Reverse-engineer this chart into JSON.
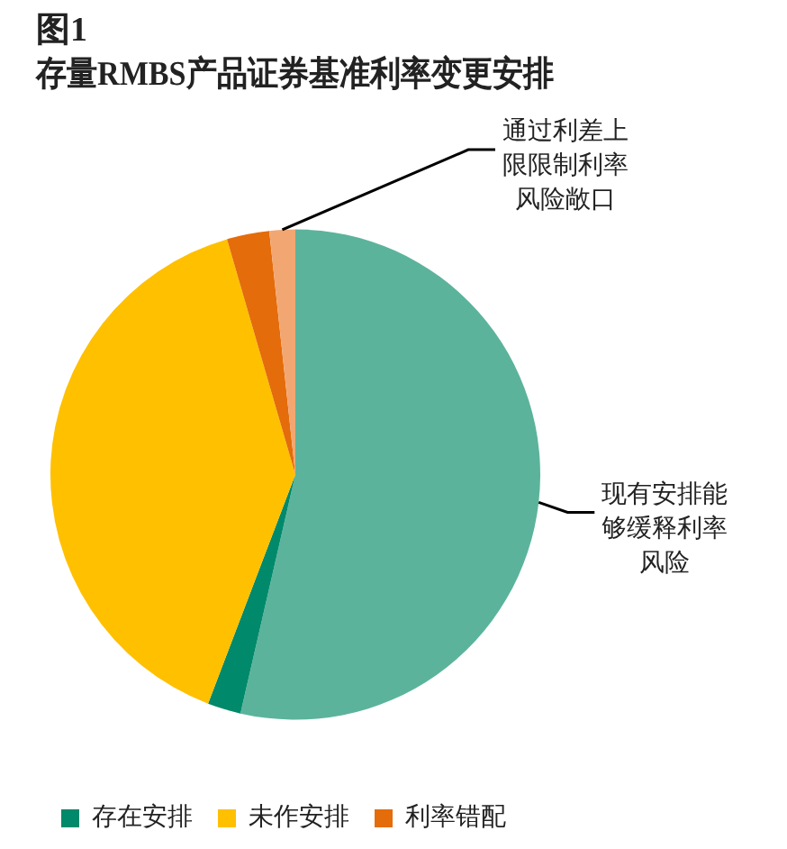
{
  "chart_data": {
    "type": "pie",
    "title": "图1",
    "subtitle": "存量RMBS产品证券基准利率变更安排",
    "categories": [
      null,
      "存在安排",
      "未作安排",
      "利率错配",
      null
    ],
    "values": [
      53.6,
      2.2,
      39.7,
      2.8,
      1.7
    ],
    "colors": [
      "#5cb39b",
      "#00896a",
      "#ffc000",
      "#e46c0a",
      "#f2a772"
    ],
    "value_labels": [
      "现有安排能够缓释利率风险",
      null,
      null,
      null,
      "通过利差上限限制利率风险敞口"
    ],
    "legend": "bottom left"
  }
}
